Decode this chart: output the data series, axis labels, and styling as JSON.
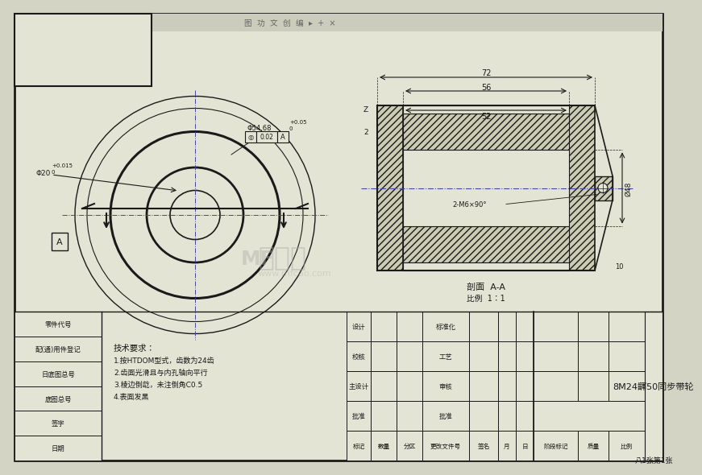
{
  "bg_color": "#d4d4c4",
  "drawing_bg": "#e4e4d4",
  "border_color": "#1a1a1a",
  "line_color": "#1a1a1a",
  "center_line_color": "#4444aa",
  "hatch_color": "#222222",
  "title": "8M24齳50同步带轮",
  "view_label": "剖面  A-A",
  "scale_label": "比例  1：1",
  "tech_req_title": "技术要求：",
  "tech_req": [
    "1.按HTDOM型式，齿数为24齿",
    "2.齿面光滑且与内孔轴向平行",
    "3.棱边倒龁，未注倒角C0.5",
    "4.表面发黑"
  ],
  "left_col_labels": [
    "零件代号",
    "配(通)用件登记",
    "日底图总号",
    "底图总号",
    "签字",
    "日期"
  ],
  "header_row": [
    "标记",
    "数量",
    "分区",
    "更改文件号",
    "签名",
    "月",
    "日",
    "阶段标记",
    "质量",
    "比例"
  ],
  "data_rows": [
    [
      "设计",
      "",
      "",
      "标准化",
      "",
      "",
      ""
    ],
    [
      "校核",
      "",
      "",
      "工艺",
      "",
      "",
      ""
    ],
    [
      "主设计",
      "",
      "",
      "审核",
      "",
      "",
      ""
    ],
    [
      "批准",
      "",
      "",
      "批准",
      "",
      "",
      ""
    ]
  ],
  "part_name": "8M24齳50同步带轮",
  "total_pages": "八1张第1张",
  "dim_phi5468": "Φ54.68",
  "dim_tol_upper": "+0.05",
  "dim_tol_lower": "0",
  "dim_runout": "0.02",
  "dim_a_ref": "A",
  "dim_phi20": "Φ20",
  "dim_phi20_tol_upper": "+0.015",
  "dim_phi20_tol_lower": "0",
  "dim_72": "72",
  "dim_56": "56",
  "dim_52": "52",
  "dim_2": "2",
  "dim_z": "Z",
  "dim_d248": "Ø48",
  "dim_10": "10",
  "dim_screw": "2-M6×90°"
}
